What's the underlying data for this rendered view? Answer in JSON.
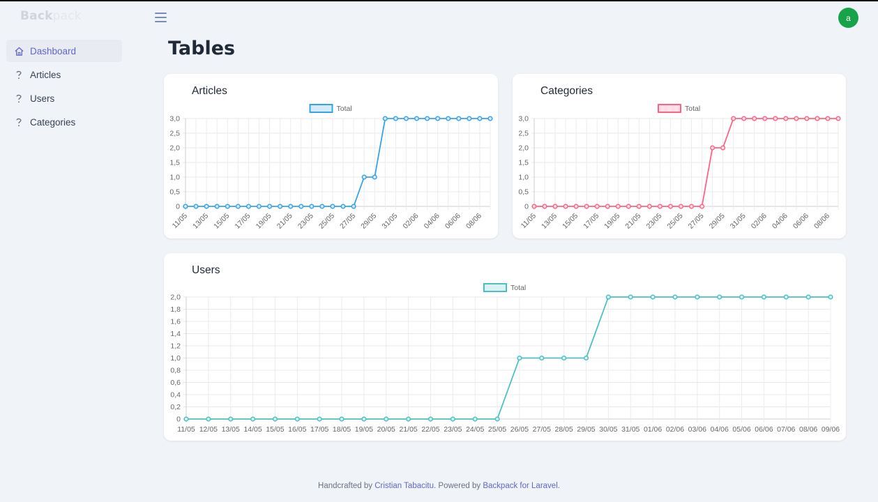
{
  "brand": {
    "part1": "Back",
    "part2": "pack"
  },
  "user": {
    "avatar_letter": "a",
    "avatar_color": "#16a34a"
  },
  "sidebar": {
    "items": [
      {
        "label": "Dashboard",
        "icon": "home-icon",
        "active": true
      },
      {
        "label": "Articles",
        "icon": "question-icon",
        "active": false
      },
      {
        "label": "Users",
        "icon": "question-icon",
        "active": false
      },
      {
        "label": "Categories",
        "icon": "question-icon",
        "active": false
      }
    ]
  },
  "page": {
    "title": "Tables"
  },
  "footer": {
    "prefix": "Handcrafted by ",
    "author": "Cristian Tabacitu",
    "middle": ". Powered by ",
    "product": "Backpack for Laravel",
    "suffix": "."
  },
  "chart_data": [
    {
      "type": "line",
      "title": "Articles",
      "legend": "Total",
      "legend_position": "top-center",
      "color": "#36a2eb",
      "fill": "#d7ecfb",
      "grid": true,
      "ylim": [
        0,
        3
      ],
      "yticks": [
        "0",
        "0,5",
        "1,0",
        "1,5",
        "2,0",
        "2,5",
        "3,0"
      ],
      "x": [
        "11/05",
        "12/05",
        "13/05",
        "14/05",
        "15/05",
        "16/05",
        "17/05",
        "18/05",
        "19/05",
        "20/05",
        "21/05",
        "22/05",
        "23/05",
        "24/05",
        "25/05",
        "26/05",
        "27/05",
        "28/05",
        "29/05",
        "30/05",
        "31/05",
        "01/06",
        "02/06",
        "03/06",
        "04/06",
        "05/06",
        "06/06",
        "07/06",
        "08/06",
        "09/06"
      ],
      "xticks_shown": [
        "11/05",
        "13/05",
        "15/05",
        "17/05",
        "19/05",
        "21/05",
        "23/05",
        "25/05",
        "27/05",
        "29/05",
        "31/05",
        "02/06",
        "04/06",
        "06/06",
        "08/06"
      ],
      "values": [
        0,
        0,
        0,
        0,
        0,
        0,
        0,
        0,
        0,
        0,
        0,
        0,
        0,
        0,
        0,
        0,
        0,
        1,
        1,
        3,
        3,
        3,
        3,
        3,
        3,
        3,
        3,
        3,
        3,
        3
      ]
    },
    {
      "type": "line",
      "title": "Categories",
      "legend": "Total",
      "legend_position": "top-center",
      "color": "#ff6384",
      "fill": "#ffe0e6",
      "grid": true,
      "ylim": [
        0,
        3
      ],
      "yticks": [
        "0",
        "0,5",
        "1,0",
        "1,5",
        "2,0",
        "2,5",
        "3,0"
      ],
      "x": [
        "11/05",
        "12/05",
        "13/05",
        "14/05",
        "15/05",
        "16/05",
        "17/05",
        "18/05",
        "19/05",
        "20/05",
        "21/05",
        "22/05",
        "23/05",
        "24/05",
        "25/05",
        "26/05",
        "27/05",
        "28/05",
        "29/05",
        "30/05",
        "31/05",
        "01/06",
        "02/06",
        "03/06",
        "04/06",
        "05/06",
        "06/06",
        "07/06",
        "08/06",
        "09/06"
      ],
      "xticks_shown": [
        "11/05",
        "13/05",
        "15/05",
        "17/05",
        "19/05",
        "21/05",
        "23/05",
        "25/05",
        "27/05",
        "29/05",
        "31/05",
        "02/06",
        "04/06",
        "06/06",
        "08/06"
      ],
      "values": [
        0,
        0,
        0,
        0,
        0,
        0,
        0,
        0,
        0,
        0,
        0,
        0,
        0,
        0,
        0,
        0,
        0,
        2,
        2,
        3,
        3,
        3,
        3,
        3,
        3,
        3,
        3,
        3,
        3,
        3
      ]
    },
    {
      "type": "line",
      "title": "Users",
      "legend": "Total",
      "legend_position": "top-center",
      "color": "#4bc0c0",
      "fill": "#dbf2f2",
      "grid": true,
      "ylim": [
        0,
        2
      ],
      "yticks": [
        "0",
        "0,2",
        "0,4",
        "0,6",
        "0,8",
        "1,0",
        "1,2",
        "1,4",
        "1,6",
        "1,8",
        "2,0"
      ],
      "x": [
        "11/05",
        "12/05",
        "13/05",
        "14/05",
        "15/05",
        "16/05",
        "17/05",
        "18/05",
        "19/05",
        "20/05",
        "21/05",
        "22/05",
        "23/05",
        "24/05",
        "25/05",
        "26/05",
        "27/05",
        "28/05",
        "29/05",
        "30/05",
        "31/05",
        "01/06",
        "02/06",
        "03/06",
        "04/06",
        "05/06",
        "06/06",
        "07/06",
        "08/06",
        "09/06"
      ],
      "xticks_shown": [
        "11/05",
        "12/05",
        "13/05",
        "14/05",
        "15/05",
        "16/05",
        "17/05",
        "18/05",
        "19/05",
        "20/05",
        "21/05",
        "22/05",
        "23/05",
        "24/05",
        "25/05",
        "26/05",
        "27/05",
        "28/05",
        "29/05",
        "30/05",
        "31/05",
        "01/06",
        "02/06",
        "03/06",
        "04/06",
        "05/06",
        "06/06",
        "07/06",
        "08/06",
        "09/06"
      ],
      "values": [
        0,
        0,
        0,
        0,
        0,
        0,
        0,
        0,
        0,
        0,
        0,
        0,
        0,
        0,
        0,
        1,
        1,
        1,
        1,
        2,
        2,
        2,
        2,
        2,
        2,
        2,
        2,
        2,
        2,
        2
      ]
    }
  ]
}
